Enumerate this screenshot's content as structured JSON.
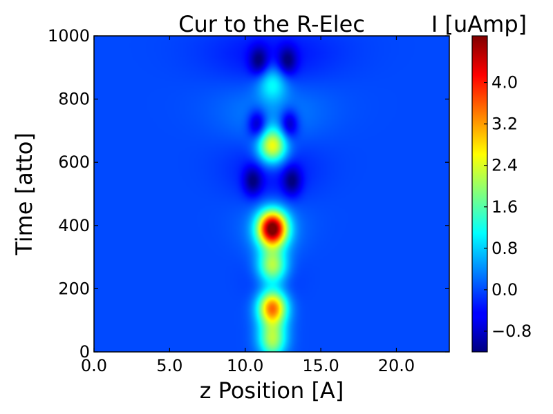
{
  "chart_data": {
    "type": "heatmap",
    "title": "Cur to the R-Elec",
    "xlabel": "z Position [A]",
    "ylabel": "Time [atto]",
    "xlim": [
      0,
      23.5
    ],
    "ylim": [
      0,
      1000
    ],
    "x_ticks": [
      "0.0",
      "5.0",
      "10.0",
      "15.0",
      "20.0"
    ],
    "x_tick_values": [
      0,
      5,
      10,
      15,
      20
    ],
    "y_ticks": [
      "0",
      "200",
      "400",
      "600",
      "800",
      "1000"
    ],
    "y_tick_values": [
      0,
      200,
      400,
      600,
      800,
      1000
    ],
    "colormap": "jet",
    "colorbar": {
      "label": "I [uAmp]",
      "range": [
        -1.2,
        4.9
      ],
      "ticks": [
        "−0.8",
        "0.0",
        "0.8",
        "1.6",
        "2.4",
        "3.2",
        "4.0"
      ],
      "tick_values": [
        -0.8,
        0.0,
        0.8,
        1.6,
        2.4,
        3.2,
        4.0
      ]
    },
    "background_value": 0.0,
    "features": [
      {
        "z": 11.8,
        "t": 140,
        "value": 3.7
      },
      {
        "z": 11.8,
        "t": 390,
        "value": 4.9
      },
      {
        "z": 11.8,
        "t": 650,
        "value": 2.6
      },
      {
        "z": 11.8,
        "t": 850,
        "value": 1.1
      },
      {
        "z": 11.8,
        "t": 270,
        "value": 2.2
      },
      {
        "z": 11.8,
        "t": 40,
        "value": 1.8
      },
      {
        "z": 10.5,
        "t": 540,
        "value": -1.0
      },
      {
        "z": 13.1,
        "t": 540,
        "value": -1.0
      },
      {
        "z": 10.8,
        "t": 720,
        "value": -1.1
      },
      {
        "z": 12.9,
        "t": 720,
        "value": -1.1
      },
      {
        "z": 10.9,
        "t": 920,
        "value": -1.0
      },
      {
        "z": 12.8,
        "t": 920,
        "value": -1.0
      }
    ]
  }
}
